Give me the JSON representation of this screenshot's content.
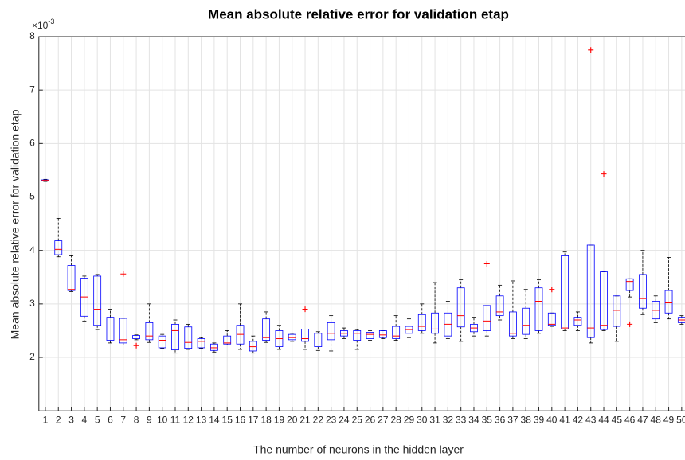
{
  "chart_data": {
    "type": "box",
    "title": "Mean absolute relative error for validation etap",
    "y_label": "Mean absolute relative error for validation etap",
    "x_label": "The number of neurons in the hidden layer",
    "y_multiplier": {
      "base": "×10",
      "exponent": "-3"
    },
    "categories": [
      1,
      2,
      3,
      4,
      5,
      6,
      7,
      8,
      9,
      10,
      11,
      12,
      13,
      14,
      15,
      16,
      17,
      18,
      19,
      20,
      21,
      22,
      23,
      24,
      25,
      26,
      27,
      28,
      29,
      30,
      31,
      32,
      33,
      34,
      35,
      36,
      37,
      38,
      39,
      40,
      41,
      42,
      43,
      44,
      45,
      46,
      47,
      48,
      49,
      50
    ],
    "xlim": [
      0.5,
      50.5
    ],
    "ylim": [
      1,
      8
    ],
    "yticks": [
      2,
      3,
      4,
      5,
      6,
      7,
      8
    ],
    "grid": true,
    "box_color": "#0000ff",
    "median_color": "#ff0000",
    "whisker_color": "#000000",
    "outlier_color": "#ff0000",
    "boxes": [
      {
        "min": 5.29,
        "q1": 5.3,
        "median": 5.31,
        "q3": 5.32,
        "max": 5.33,
        "outliers": []
      },
      {
        "min": 3.88,
        "q1": 3.92,
        "median": 4.02,
        "q3": 4.18,
        "max": 4.6,
        "outliers": []
      },
      {
        "min": 3.23,
        "q1": 3.25,
        "median": 3.27,
        "q3": 3.72,
        "max": 3.9,
        "outliers": []
      },
      {
        "min": 2.68,
        "q1": 2.77,
        "median": 3.13,
        "q3": 3.48,
        "max": 3.52,
        "outliers": []
      },
      {
        "min": 2.52,
        "q1": 2.6,
        "median": 2.9,
        "q3": 3.52,
        "max": 3.55,
        "outliers": []
      },
      {
        "min": 2.27,
        "q1": 2.32,
        "median": 2.38,
        "q3": 2.75,
        "max": 2.9,
        "outliers": []
      },
      {
        "min": 2.23,
        "q1": 2.27,
        "median": 2.33,
        "q3": 2.73,
        "max": 2.73,
        "outliers": [
          3.56
        ]
      },
      {
        "min": 2.33,
        "q1": 2.35,
        "median": 2.38,
        "q3": 2.41,
        "max": 2.42,
        "outliers": [
          2.22
        ]
      },
      {
        "min": 2.28,
        "q1": 2.33,
        "median": 2.4,
        "q3": 2.65,
        "max": 3.0,
        "outliers": []
      },
      {
        "min": 2.17,
        "q1": 2.18,
        "median": 2.32,
        "q3": 2.4,
        "max": 2.43,
        "outliers": []
      },
      {
        "min": 2.08,
        "q1": 2.14,
        "median": 2.5,
        "q3": 2.62,
        "max": 2.7,
        "outliers": []
      },
      {
        "min": 2.15,
        "q1": 2.17,
        "median": 2.28,
        "q3": 2.57,
        "max": 2.62,
        "outliers": []
      },
      {
        "min": 2.17,
        "q1": 2.18,
        "median": 2.3,
        "q3": 2.35,
        "max": 2.37,
        "outliers": []
      },
      {
        "min": 2.1,
        "q1": 2.13,
        "median": 2.18,
        "q3": 2.25,
        "max": 2.27,
        "outliers": []
      },
      {
        "min": 2.23,
        "q1": 2.25,
        "median": 2.27,
        "q3": 2.4,
        "max": 2.5,
        "outliers": []
      },
      {
        "min": 2.15,
        "q1": 2.25,
        "median": 2.43,
        "q3": 2.6,
        "max": 3.0,
        "outliers": []
      },
      {
        "min": 2.08,
        "q1": 2.12,
        "median": 2.2,
        "q3": 2.3,
        "max": 2.4,
        "outliers": []
      },
      {
        "min": 2.28,
        "q1": 2.32,
        "median": 2.37,
        "q3": 2.72,
        "max": 2.85,
        "outliers": []
      },
      {
        "min": 2.15,
        "q1": 2.2,
        "median": 2.35,
        "q3": 2.5,
        "max": 2.6,
        "outliers": []
      },
      {
        "min": 2.3,
        "q1": 2.33,
        "median": 2.37,
        "q3": 2.43,
        "max": 2.45,
        "outliers": []
      },
      {
        "min": 2.15,
        "q1": 2.3,
        "median": 2.35,
        "q3": 2.53,
        "max": 2.53,
        "outliers": [
          2.9
        ]
      },
      {
        "min": 2.13,
        "q1": 2.2,
        "median": 2.38,
        "q3": 2.45,
        "max": 2.48,
        "outliers": []
      },
      {
        "min": 2.12,
        "q1": 2.33,
        "median": 2.45,
        "q3": 2.65,
        "max": 2.78,
        "outliers": []
      },
      {
        "min": 2.35,
        "q1": 2.4,
        "median": 2.45,
        "q3": 2.5,
        "max": 2.55,
        "outliers": []
      },
      {
        "min": 2.15,
        "q1": 2.32,
        "median": 2.45,
        "q3": 2.5,
        "max": 2.52,
        "outliers": []
      },
      {
        "min": 2.32,
        "q1": 2.35,
        "median": 2.43,
        "q3": 2.47,
        "max": 2.5,
        "outliers": []
      },
      {
        "min": 2.35,
        "q1": 2.37,
        "median": 2.42,
        "q3": 2.5,
        "max": 2.5,
        "outliers": []
      },
      {
        "min": 2.32,
        "q1": 2.35,
        "median": 2.4,
        "q3": 2.58,
        "max": 2.78,
        "outliers": []
      },
      {
        "min": 2.37,
        "q1": 2.45,
        "median": 2.52,
        "q3": 2.58,
        "max": 2.72,
        "outliers": []
      },
      {
        "min": 2.45,
        "q1": 2.5,
        "median": 2.58,
        "q3": 2.8,
        "max": 3.0,
        "outliers": []
      },
      {
        "min": 2.27,
        "q1": 2.45,
        "median": 2.53,
        "q3": 2.83,
        "max": 3.4,
        "outliers": []
      },
      {
        "min": 2.35,
        "q1": 2.4,
        "median": 2.62,
        "q3": 2.83,
        "max": 3.05,
        "outliers": []
      },
      {
        "min": 2.3,
        "q1": 2.57,
        "median": 2.78,
        "q3": 3.3,
        "max": 3.45,
        "outliers": []
      },
      {
        "min": 2.4,
        "q1": 2.48,
        "median": 2.55,
        "q3": 2.62,
        "max": 2.75,
        "outliers": []
      },
      {
        "min": 2.4,
        "q1": 2.5,
        "median": 2.68,
        "q3": 2.97,
        "max": 2.97,
        "outliers": [
          3.75
        ]
      },
      {
        "min": 2.7,
        "q1": 2.78,
        "median": 2.85,
        "q3": 3.15,
        "max": 3.35,
        "outliers": []
      },
      {
        "min": 2.35,
        "q1": 2.4,
        "median": 2.45,
        "q3": 2.85,
        "max": 3.43,
        "outliers": []
      },
      {
        "min": 2.35,
        "q1": 2.43,
        "median": 2.6,
        "q3": 2.92,
        "max": 3.27,
        "outliers": []
      },
      {
        "min": 2.45,
        "q1": 2.5,
        "median": 3.05,
        "q3": 3.3,
        "max": 3.45,
        "outliers": []
      },
      {
        "min": 2.58,
        "q1": 2.6,
        "median": 2.62,
        "q3": 2.83,
        "max": 2.83,
        "outliers": [
          3.27
        ]
      },
      {
        "min": 2.5,
        "q1": 2.53,
        "median": 2.55,
        "q3": 3.9,
        "max": 3.97,
        "outliers": []
      },
      {
        "min": 2.5,
        "q1": 2.6,
        "median": 2.7,
        "q3": 2.75,
        "max": 2.85,
        "outliers": []
      },
      {
        "min": 2.27,
        "q1": 2.37,
        "median": 2.55,
        "q3": 4.1,
        "max": 4.1,
        "outliers": [
          7.75
        ]
      },
      {
        "min": 2.5,
        "q1": 2.52,
        "median": 2.6,
        "q3": 3.6,
        "max": 3.6,
        "outliers": [
          5.43
        ]
      },
      {
        "min": 2.3,
        "q1": 2.58,
        "median": 2.88,
        "q3": 3.15,
        "max": 3.15,
        "outliers": []
      },
      {
        "min": 3.13,
        "q1": 3.25,
        "median": 3.42,
        "q3": 3.47,
        "max": 3.47,
        "outliers": [
          2.62
        ]
      },
      {
        "min": 2.8,
        "q1": 2.92,
        "median": 3.1,
        "q3": 3.55,
        "max": 4.0,
        "outliers": []
      },
      {
        "min": 2.65,
        "q1": 2.72,
        "median": 2.88,
        "q3": 3.05,
        "max": 3.15,
        "outliers": []
      },
      {
        "min": 2.72,
        "q1": 2.83,
        "median": 3.02,
        "q3": 3.25,
        "max": 3.87,
        "outliers": []
      },
      {
        "min": 2.62,
        "q1": 2.65,
        "median": 2.7,
        "q3": 2.75,
        "max": 2.78,
        "outliers": []
      }
    ]
  }
}
